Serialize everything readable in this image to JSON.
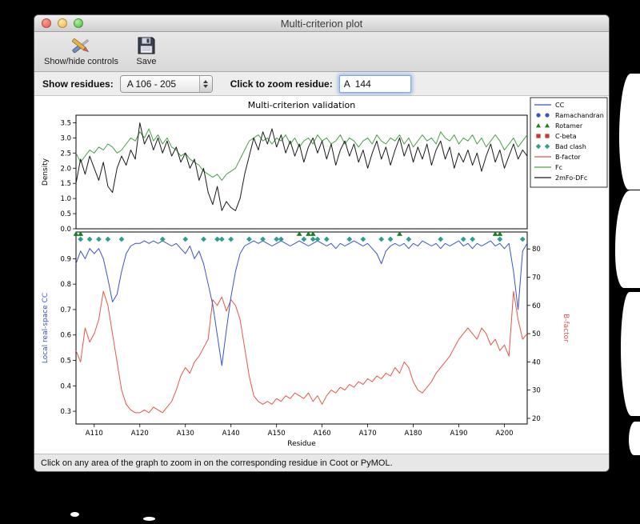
{
  "window": {
    "title": "Multi-criterion plot",
    "status_bar": "Click on any area of the graph to zoom in on the corresponding residue in Coot or PyMOL."
  },
  "icons": {
    "show_hide": "crossed-tools-icon",
    "save": "floppy-disk-icon",
    "combo_stepper": "up-down-arrows-icon"
  },
  "toolbar": {
    "show_hide_label": "Show/hide controls",
    "save_label": "Save"
  },
  "controls": {
    "show_residues_label": "Show residues:",
    "show_residues_value": "A 106 - 205",
    "zoom_residue_label": "Click to zoom residue:",
    "zoom_residue_value": "A  144"
  },
  "chart_data": {
    "type": "line",
    "title": "Multi-criterion validation",
    "xlabel": "Residue",
    "x_range": [
      106,
      205
    ],
    "x_ticks": [
      "A110",
      "A120",
      "A130",
      "A140",
      "A150",
      "A160",
      "A170",
      "A180",
      "A190",
      "A200"
    ],
    "top": {
      "ylabel": "Density",
      "ylim": [
        0,
        3.75
      ],
      "yticks": [
        0.0,
        0.5,
        1.0,
        1.5,
        2.0,
        2.5,
        3.0,
        3.5
      ],
      "series": [
        {
          "name": "Fc",
          "color": "#4b9e4b",
          "values": [
            2.5,
            2.2,
            2.4,
            2.6,
            2.5,
            2.7,
            2.6,
            2.8,
            2.7,
            2.5,
            2.6,
            2.8,
            3.0,
            2.9,
            3.2,
            3.0,
            3.3,
            2.9,
            3.1,
            2.8,
            3.0,
            2.7,
            2.6,
            2.4,
            2.5,
            2.3,
            2.2,
            2.1,
            1.9,
            1.8,
            1.7,
            1.8,
            1.6,
            1.8,
            1.9,
            2.0,
            2.3,
            2.6,
            2.9,
            3.0,
            3.1,
            2.9,
            3.0,
            2.8,
            3.0,
            2.9,
            3.1,
            2.8,
            3.0,
            2.7,
            2.9,
            3.0,
            2.8,
            3.1,
            2.9,
            3.0,
            2.8,
            2.9,
            3.1,
            2.8,
            3.0,
            2.9,
            2.7,
            2.9,
            3.0,
            2.8,
            3.1,
            2.9,
            2.8,
            3.0,
            2.9,
            3.1,
            2.8,
            3.0,
            2.7,
            2.9,
            3.1,
            2.9,
            3.0,
            2.8,
            3.2,
            3.0,
            2.9,
            3.1,
            2.8,
            3.0,
            2.9,
            3.1,
            2.8,
            3.0,
            2.7,
            2.9,
            3.1,
            2.9,
            2.6,
            2.8,
            3.0,
            2.7,
            2.9,
            3.1
          ]
        },
        {
          "name": "2mFo-DFc",
          "color": "#1a1a1a",
          "values": [
            1.5,
            2.3,
            1.8,
            2.4,
            2.0,
            1.6,
            2.2,
            1.4,
            1.2,
            2.0,
            2.4,
            2.1,
            2.6,
            2.3,
            3.5,
            2.8,
            3.1,
            2.6,
            3.0,
            2.5,
            2.9,
            2.4,
            2.7,
            2.2,
            2.5,
            2.0,
            2.3,
            1.6,
            2.0,
            1.2,
            0.8,
            1.4,
            0.6,
            0.9,
            0.7,
            0.6,
            1.0,
            1.8,
            2.4,
            3.0,
            2.6,
            3.2,
            2.8,
            3.3,
            2.7,
            3.1,
            2.5,
            2.9,
            2.4,
            2.8,
            2.2,
            2.7,
            3.0,
            2.5,
            2.9,
            2.3,
            2.8,
            2.1,
            2.6,
            2.9,
            2.4,
            2.8,
            2.2,
            2.6,
            2.0,
            2.5,
            2.9,
            2.3,
            2.7,
            2.1,
            2.6,
            3.0,
            2.4,
            2.8,
            2.2,
            2.7,
            2.3,
            2.8,
            2.1,
            2.6,
            2.9,
            2.3,
            2.7,
            2.0,
            2.5,
            2.2,
            2.6,
            2.1,
            2.5,
            1.9,
            2.4,
            2.8,
            2.2,
            2.6,
            2.0,
            2.4,
            2.8,
            2.3,
            2.6,
            2.4
          ]
        }
      ]
    },
    "bottom": {
      "ylabel_left": "Local real-space CC",
      "ylabel_left_color": "#3b52c9",
      "ylim_left": [
        0.25,
        1.005
      ],
      "yticks_left": [
        0.3,
        0.4,
        0.5,
        0.6,
        0.7,
        0.8,
        0.9
      ],
      "ylabel_right": "B-factor",
      "ylabel_right_color": "#e2574a",
      "ylim_right": [
        18,
        86
      ],
      "yticks_right": [
        20,
        30,
        40,
        50,
        60,
        70,
        80
      ],
      "cc": {
        "name": "CC",
        "color": "#3b52c9",
        "values": [
          0.88,
          0.93,
          0.9,
          0.94,
          0.92,
          0.94,
          0.9,
          0.82,
          0.73,
          0.76,
          0.85,
          0.92,
          0.95,
          0.96,
          0.96,
          0.97,
          0.96,
          0.97,
          0.96,
          0.97,
          0.96,
          0.95,
          0.96,
          0.94,
          0.92,
          0.95,
          0.9,
          0.93,
          0.88,
          0.8,
          0.72,
          0.6,
          0.48,
          0.62,
          0.75,
          0.85,
          0.92,
          0.95,
          0.96,
          0.97,
          0.96,
          0.97,
          0.96,
          0.95,
          0.96,
          0.97,
          0.96,
          0.95,
          0.96,
          0.97,
          0.96,
          0.95,
          0.96,
          0.97,
          0.96,
          0.95,
          0.96,
          0.94,
          0.96,
          0.95,
          0.96,
          0.97,
          0.96,
          0.95,
          0.96,
          0.94,
          0.92,
          0.88,
          0.93,
          0.95,
          0.96,
          0.95,
          0.96,
          0.94,
          0.96,
          0.95,
          0.97,
          0.96,
          0.95,
          0.96,
          0.94,
          0.96,
          0.95,
          0.96,
          0.97,
          0.95,
          0.96,
          0.94,
          0.96,
          0.95,
          0.96,
          0.97,
          0.95,
          0.96,
          0.94,
          0.96,
          0.85,
          0.7,
          0.93,
          0.96
        ]
      },
      "bfactor": {
        "name": "B-factor",
        "color": "#e2574a",
        "values": [
          44,
          40,
          52,
          47,
          50,
          55,
          65,
          60,
          50,
          40,
          30,
          25,
          23,
          22,
          22,
          23,
          22,
          24,
          23,
          22,
          24,
          26,
          30,
          35,
          38,
          36,
          40,
          42,
          45,
          48,
          62,
          60,
          63,
          58,
          62,
          60,
          55,
          45,
          35,
          28,
          26,
          25,
          26,
          25,
          27,
          26,
          28,
          27,
          29,
          28,
          27,
          29,
          26,
          28,
          25,
          28,
          30,
          29,
          31,
          30,
          32,
          31,
          33,
          32,
          34,
          33,
          35,
          34,
          36,
          35,
          38,
          36,
          40,
          38,
          33,
          30,
          29,
          31,
          33,
          36,
          38,
          40,
          42,
          45,
          48,
          50,
          52,
          50,
          48,
          52,
          50,
          46,
          48,
          44,
          46,
          42,
          65,
          55,
          48,
          50
        ]
      },
      "markers": {
        "rotamer": {
          "symbol": "triangle",
          "color": "#1e7d1e",
          "x": [
            106,
            107,
            155,
            157,
            158,
            177,
            198,
            199
          ]
        },
        "bad_clash": {
          "symbol": "diamond",
          "color": "#2f9e8f",
          "x": [
            107,
            109,
            111,
            113,
            116,
            125,
            130,
            134,
            137,
            138,
            140,
            144,
            147,
            150,
            151,
            156,
            158,
            159,
            161,
            166,
            169,
            173,
            175,
            179,
            186,
            191,
            193,
            199,
            204
          ]
        },
        "ramachandran": {
          "symbol": "circle",
          "color": "#3b52c9",
          "x": []
        },
        "c_beta": {
          "symbol": "square",
          "color": "#c9372e",
          "x": []
        }
      }
    },
    "legend": [
      {
        "label": "CC",
        "symbol": "line",
        "color": "#3b52c9"
      },
      {
        "label": "Ramachandran",
        "symbol": "circles",
        "color": "#3b52c9"
      },
      {
        "label": "Rotamer",
        "symbol": "triangles",
        "color": "#1e7d1e"
      },
      {
        "label": "C-beta",
        "symbol": "squares",
        "color": "#c9372e"
      },
      {
        "label": "Bad clash",
        "symbol": "diamonds",
        "color": "#2f9e8f"
      },
      {
        "label": "B-factor",
        "symbol": "line",
        "color": "#e2574a"
      },
      {
        "label": "Fc",
        "symbol": "line",
        "color": "#4b9e4b"
      },
      {
        "label": "2mFo-DFc",
        "symbol": "line",
        "color": "#1a1a1a"
      }
    ]
  }
}
